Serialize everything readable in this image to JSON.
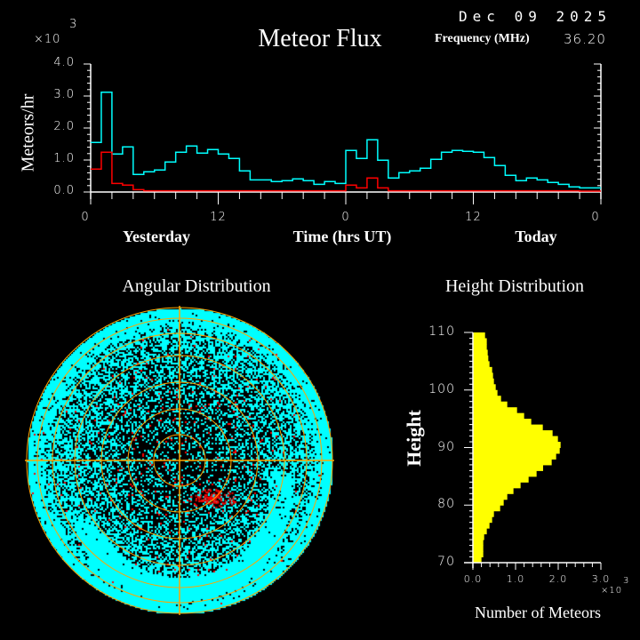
{
  "header": {
    "title": "Meteor Flux",
    "date": "Dec 09 2025",
    "frequency_label": "Frequency (MHz)",
    "frequency_value": "36.20"
  },
  "colors": {
    "background": "#000000",
    "all_meteors": "#00ffff",
    "red_series": "#ff0000",
    "height_bars": "#ffff00",
    "angular_grid": "#ffa500",
    "axes": "#ffffff"
  },
  "chart_data": [
    {
      "type": "line",
      "title": "Meteor Flux",
      "ylabel": "Meteors/hr",
      "xlabel": "Time (hrs UT)",
      "y_multiplier": "×10",
      "y_multiplier_exp": "3",
      "ylim": [
        0,
        4000
      ],
      "xlim": [
        0,
        48
      ],
      "y_tick_labels": [
        "0.0",
        "1.0",
        "2.0",
        "3.0",
        "4.0"
      ],
      "x_tick_labels": [
        "0",
        "12",
        "0",
        "12",
        "0"
      ],
      "x_group_labels": [
        "Yesterday",
        "Today"
      ],
      "step": "hourly",
      "series": [
        {
          "color": "#00ffff",
          "values": [
            1550,
            3118,
            1188,
            1411,
            548,
            631,
            687,
            937,
            1244,
            1439,
            1216,
            1327,
            1188,
            1049,
            659,
            380,
            380,
            325,
            353,
            408,
            353,
            241,
            325,
            269,
            1299,
            1049,
            1633,
            993,
            436,
            603,
            659,
            742,
            1021,
            1244,
            1299,
            1271,
            1244,
            1077,
            826,
            520,
            353,
            436,
            380,
            297,
            241,
            158,
            130,
            130
          ]
        },
        {
          "color": "#ff0000",
          "values": [
            687,
            1216,
            241,
            186,
            46,
            10,
            10,
            10,
            10,
            10,
            10,
            10,
            10,
            10,
            10,
            10,
            10,
            10,
            10,
            10,
            10,
            10,
            10,
            10,
            186,
            102,
            408,
            102,
            10,
            10,
            10,
            10,
            10,
            10,
            10,
            10,
            10,
            10,
            10,
            10,
            10,
            10,
            10,
            10,
            10,
            10,
            0,
            0
          ]
        }
      ]
    },
    {
      "type": "scatter",
      "title": "Angular Distribution",
      "projection": "polar (sky map)",
      "point_colors": [
        "#00ffff",
        "#ff0000"
      ],
      "grid": true
    },
    {
      "type": "bar",
      "orientation": "horizontal",
      "title": "Height Distribution",
      "ylabel": "Height",
      "xlabel": "Number of Meteors",
      "x_multiplier": "×10",
      "x_multiplier_exp": "3",
      "xlim": [
        0,
        3000
      ],
      "ylim": [
        70,
        110
      ],
      "x_tick_labels": [
        "0.0",
        "1.0",
        "2.0",
        "3.0"
      ],
      "y_tick_labels": [
        "70",
        "80",
        "90",
        "100",
        "110"
      ],
      "heights_km_bin_top": [
        110,
        109,
        108,
        107,
        106,
        105,
        104,
        103,
        102,
        101,
        100,
        99,
        98,
        97,
        96,
        95,
        94,
        93,
        92,
        91,
        90,
        89,
        88,
        87,
        86,
        85,
        84,
        83,
        82,
        81,
        80,
        79,
        78,
        77,
        76,
        75,
        74,
        73,
        72,
        71
      ],
      "values": [
        285,
        326,
        326,
        347,
        361,
        389,
        451,
        472,
        493,
        535,
        576,
        660,
        806,
        1035,
        1201,
        1368,
        1639,
        1868,
        1993,
        2056,
        2035,
        1951,
        1847,
        1646,
        1493,
        1306,
        1118,
        951,
        806,
        722,
        639,
        493,
        451,
        389,
        326,
        264,
        243,
        243,
        243,
        201
      ]
    }
  ]
}
